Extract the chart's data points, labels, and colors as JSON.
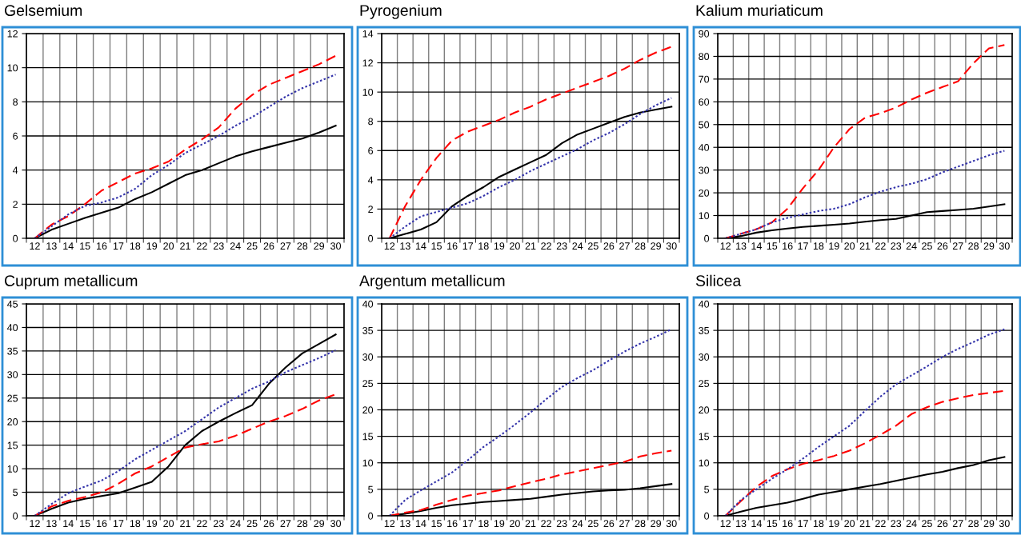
{
  "chart_data": [
    {
      "type": "line",
      "title": "Gelsemium",
      "categories": [
        "12",
        "13",
        "14",
        "15",
        "16",
        "17",
        "18",
        "19",
        "20",
        "21",
        "22",
        "23",
        "24",
        "25",
        "26",
        "27",
        "28",
        "29",
        "30"
      ],
      "ylim": [
        0,
        12
      ],
      "yticks": [
        0,
        2,
        4,
        6,
        8,
        10,
        12
      ],
      "grid": true,
      "marker": "none",
      "series": [
        {
          "color": "#000000",
          "line_style": "solid",
          "values": [
            0,
            0.5,
            0.85,
            1.2,
            1.5,
            1.8,
            2.3,
            2.7,
            3.2,
            3.7,
            4.0,
            4.4,
            4.8,
            5.1,
            5.35,
            5.6,
            5.85,
            6.2,
            6.6
          ]
        },
        {
          "color": "#ff0000",
          "line_style": "dashed",
          "values": [
            0,
            0.8,
            1.3,
            2.0,
            2.8,
            3.3,
            3.8,
            4.1,
            4.5,
            5.2,
            5.8,
            6.5,
            7.6,
            8.4,
            9.0,
            9.4,
            9.8,
            10.2,
            10.7
          ]
        },
        {
          "color": "#3333aa",
          "line_style": "dotted",
          "values": [
            0,
            0.7,
            1.4,
            1.9,
            2.1,
            2.4,
            2.9,
            3.7,
            4.3,
            5.0,
            5.5,
            6.0,
            6.6,
            7.1,
            7.7,
            8.3,
            8.8,
            9.2,
            9.6
          ]
        }
      ]
    },
    {
      "type": "line",
      "title": "Pyrogenium",
      "categories": [
        "12",
        "13",
        "14",
        "15",
        "16",
        "17",
        "18",
        "19",
        "20",
        "21",
        "22",
        "23",
        "24",
        "25",
        "26",
        "27",
        "28",
        "29",
        "30"
      ],
      "ylim": [
        0,
        14
      ],
      "yticks": [
        0,
        2,
        4,
        6,
        8,
        10,
        12,
        14
      ],
      "grid": true,
      "marker": "none",
      "series": [
        {
          "color": "#000000",
          "line_style": "solid",
          "values": [
            0,
            0.3,
            0.6,
            1.1,
            2.2,
            2.9,
            3.5,
            4.2,
            4.7,
            5.2,
            5.7,
            6.5,
            7.1,
            7.5,
            7.9,
            8.3,
            8.6,
            8.8,
            9.0
          ]
        },
        {
          "color": "#ff0000",
          "line_style": "dashed",
          "values": [
            0,
            2.2,
            4.0,
            5.5,
            6.7,
            7.3,
            7.7,
            8.1,
            8.6,
            9.0,
            9.5,
            9.9,
            10.3,
            10.7,
            11.1,
            11.6,
            12.2,
            12.7,
            13.1
          ]
        },
        {
          "color": "#3333aa",
          "line_style": "dotted",
          "values": [
            0,
            0.8,
            1.5,
            1.8,
            2.1,
            2.4,
            2.9,
            3.5,
            4.0,
            4.6,
            5.1,
            5.6,
            6.1,
            6.7,
            7.2,
            7.8,
            8.5,
            9.1,
            9.6
          ]
        }
      ]
    },
    {
      "type": "line",
      "title": "Kalium muriaticum",
      "categories": [
        "12",
        "13",
        "14",
        "15",
        "16",
        "17",
        "18",
        "19",
        "20",
        "21",
        "22",
        "23",
        "24",
        "25",
        "26",
        "27",
        "28",
        "29",
        "30"
      ],
      "ylim": [
        0,
        90
      ],
      "yticks": [
        0,
        10,
        20,
        30,
        40,
        50,
        60,
        70,
        80,
        90
      ],
      "grid": true,
      "marker": "none",
      "series": [
        {
          "color": "#000000",
          "line_style": "solid",
          "values": [
            0,
            1,
            2.5,
            3.5,
            4.3,
            5,
            5.5,
            6,
            6.5,
            7.3,
            8,
            8.5,
            10,
            11.5,
            12,
            12.5,
            13,
            14,
            15
          ]
        },
        {
          "color": "#ff0000",
          "line_style": "dashed",
          "values": [
            0,
            2,
            4,
            7,
            13,
            22,
            30,
            40,
            48,
            53,
            55,
            57.5,
            61,
            64,
            66.5,
            69,
            77,
            83.5,
            85
          ]
        },
        {
          "color": "#3333aa",
          "line_style": "dotted",
          "values": [
            0,
            2,
            4,
            7,
            9,
            10.5,
            12,
            13,
            15,
            18,
            20.5,
            22.5,
            24,
            26,
            29,
            31.5,
            34,
            36.5,
            38.5
          ]
        }
      ]
    },
    {
      "type": "line",
      "title": "Cuprum metallicum",
      "categories": [
        "12",
        "13",
        "14",
        "15",
        "16",
        "17",
        "18",
        "19",
        "20",
        "21",
        "22",
        "23",
        "24",
        "25",
        "26",
        "27",
        "28",
        "29",
        "30"
      ],
      "ylim": [
        0,
        45
      ],
      "yticks": [
        0,
        5,
        10,
        15,
        20,
        25,
        30,
        35,
        40,
        45
      ],
      "grid": true,
      "marker": "none",
      "series": [
        {
          "color": "#000000",
          "line_style": "solid",
          "values": [
            0,
            1.5,
            2.8,
            3.6,
            4.2,
            4.8,
            6.0,
            7.2,
            10.5,
            15,
            18,
            20,
            21.8,
            23.5,
            28,
            31.5,
            34.5,
            36.5,
            38.5
          ]
        },
        {
          "color": "#ff0000",
          "line_style": "dashed",
          "values": [
            0,
            2,
            3.2,
            4,
            5,
            6.8,
            9,
            10.5,
            12.5,
            14.5,
            15.2,
            15.8,
            17,
            18.5,
            20,
            21.2,
            22.7,
            24.5,
            25.8
          ]
        },
        {
          "color": "#3333aa",
          "line_style": "dotted",
          "values": [
            0,
            2.5,
            4.8,
            6.2,
            7.5,
            9.5,
            12,
            14,
            16,
            18,
            20.5,
            23,
            25,
            27,
            28.5,
            30.5,
            32,
            33.5,
            35.2
          ]
        }
      ]
    },
    {
      "type": "line",
      "title": "Argentum metallicum",
      "categories": [
        "12",
        "13",
        "14",
        "15",
        "16",
        "17",
        "18",
        "19",
        "20",
        "21",
        "22",
        "23",
        "24",
        "25",
        "26",
        "27",
        "28",
        "29",
        "30"
      ],
      "ylim": [
        0,
        40
      ],
      "yticks": [
        0,
        5,
        10,
        15,
        20,
        25,
        30,
        35,
        40
      ],
      "grid": true,
      "marker": "none",
      "series": [
        {
          "color": "#000000",
          "line_style": "solid",
          "values": [
            0,
            0.4,
            0.9,
            1.5,
            2.0,
            2.3,
            2.6,
            2.8,
            3.0,
            3.2,
            3.6,
            4.0,
            4.3,
            4.6,
            4.8,
            4.9,
            5.2,
            5.6,
            6.0
          ]
        },
        {
          "color": "#ff0000",
          "line_style": "dashed",
          "values": [
            0,
            0.6,
            1.1,
            2.1,
            3.0,
            3.8,
            4.3,
            4.8,
            5.6,
            6.3,
            7.0,
            7.8,
            8.4,
            9.0,
            9.6,
            10.2,
            11.2,
            11.8,
            12.3
          ]
        },
        {
          "color": "#3333aa",
          "line_style": "dotted",
          "values": [
            0,
            3.0,
            4.8,
            6.5,
            8.2,
            10.5,
            13,
            15,
            17.2,
            19.5,
            22,
            24.3,
            26,
            27.5,
            29.3,
            31,
            32.5,
            33.8,
            35.2
          ]
        }
      ]
    },
    {
      "type": "line",
      "title": "Silicea",
      "categories": [
        "12",
        "13",
        "14",
        "15",
        "16",
        "17",
        "18",
        "19",
        "20",
        "21",
        "22",
        "23",
        "24",
        "25",
        "26",
        "27",
        "28",
        "29",
        "30"
      ],
      "ylim": [
        0,
        40
      ],
      "yticks": [
        0,
        5,
        10,
        15,
        20,
        25,
        30,
        35,
        40
      ],
      "grid": true,
      "marker": "none",
      "series": [
        {
          "color": "#000000",
          "line_style": "solid",
          "values": [
            0,
            0.8,
            1.5,
            2.0,
            2.5,
            3.2,
            4.0,
            4.5,
            5.0,
            5.5,
            6.0,
            6.6,
            7.2,
            7.8,
            8.3,
            9.0,
            9.6,
            10.5,
            11.1
          ]
        },
        {
          "color": "#ff0000",
          "line_style": "dashed",
          "values": [
            0,
            2.8,
            5.5,
            7.5,
            8.8,
            9.8,
            10.5,
            11.3,
            12.3,
            13.7,
            15.3,
            17.0,
            19.2,
            20.5,
            21.5,
            22.2,
            22.8,
            23.2,
            23.6
          ]
        },
        {
          "color": "#3333aa",
          "line_style": "dotted",
          "values": [
            0,
            3.0,
            5.0,
            7.0,
            8.8,
            10.8,
            13.0,
            15.0,
            17.0,
            19.8,
            22.5,
            24.8,
            26.5,
            28.2,
            30,
            31.5,
            32.8,
            34.2,
            35.2
          ]
        }
      ]
    }
  ]
}
